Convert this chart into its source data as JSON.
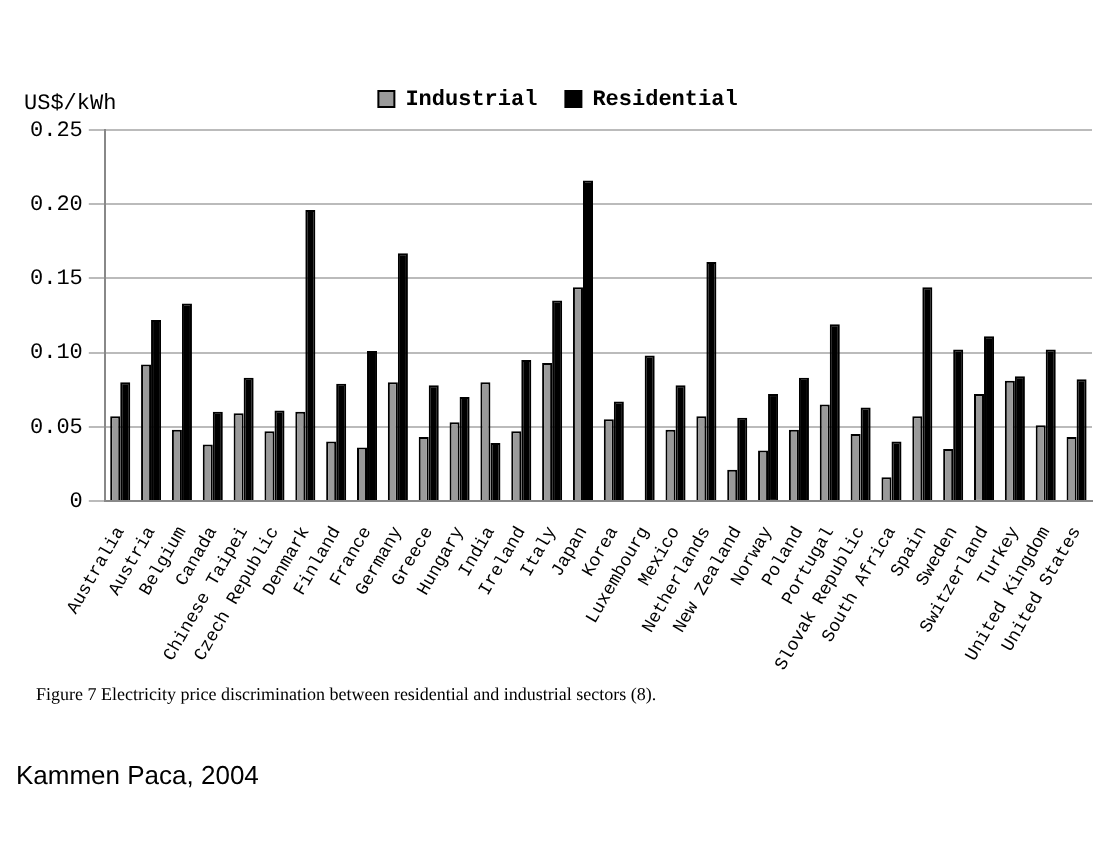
{
  "chart_data": {
    "type": "bar",
    "ylabel": "US$/kWh",
    "categories": [
      "Australia",
      "Austria",
      "Belgium",
      "Canada",
      "Chinese Taipei",
      "Czech Republic",
      "Denmark",
      "Finland",
      "France",
      "Germany",
      "Greece",
      "Hungary",
      "India",
      "Ireland",
      "Italy",
      "Japan",
      "Korea",
      "Luxembourg",
      "Mexico",
      "Netherlands",
      "New Zealand",
      "Norway",
      "Poland",
      "Portugal",
      "Slovak Republic",
      "South Africa",
      "Spain",
      "Sweden",
      "Switzerland",
      "Turkey",
      "United Kingdom",
      "United States"
    ],
    "series": [
      {
        "name": "Industrial",
        "color": "#9a9a9a",
        "values": [
          0.057,
          0.092,
          0.048,
          0.038,
          0.059,
          0.047,
          0.06,
          0.04,
          0.036,
          0.08,
          0.043,
          0.053,
          0.08,
          0.047,
          0.093,
          0.144,
          0.055,
          null,
          0.048,
          0.057,
          0.021,
          0.034,
          0.048,
          0.065,
          0.045,
          0.016,
          0.057,
          0.035,
          0.072,
          0.081,
          0.051,
          0.043
        ]
      },
      {
        "name": "Residential",
        "color": "#000000",
        "values": [
          0.08,
          0.122,
          0.133,
          0.06,
          0.083,
          0.061,
          0.196,
          0.079,
          0.101,
          0.167,
          0.078,
          0.07,
          0.039,
          0.095,
          0.135,
          0.216,
          0.067,
          0.098,
          0.078,
          0.161,
          0.056,
          0.072,
          0.083,
          0.119,
          0.063,
          0.04,
          0.144,
          0.102,
          0.111,
          0.084,
          0.102,
          0.082
        ]
      }
    ],
    "ylim": [
      0,
      0.25
    ],
    "yticks": [
      {
        "value": 0,
        "label": "0"
      },
      {
        "value": 0.05,
        "label": "0.05"
      },
      {
        "value": 0.1,
        "label": "0.10"
      },
      {
        "value": 0.15,
        "label": "0.15"
      },
      {
        "value": 0.2,
        "label": "0.20"
      },
      {
        "value": 0.25,
        "label": "0.25"
      }
    ],
    "grid": "y",
    "legend": "top",
    "annotations": [
      "Figure 7   Electricity price discrimination between residential and industrial sectors (8).",
      "Kammen Paca, 2004"
    ]
  }
}
